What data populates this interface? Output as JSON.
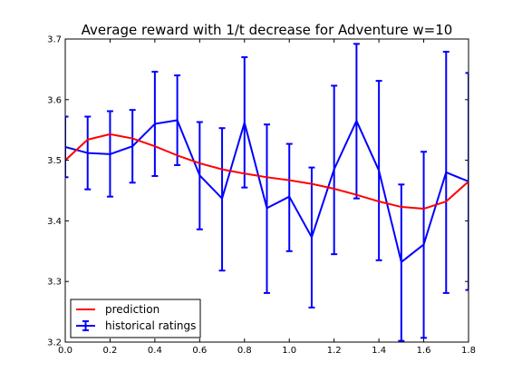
{
  "chart_data": {
    "type": "line",
    "title": "Average reward with 1/t decrease for Adventure w=10",
    "xlim": [
      0.0,
      1.8
    ],
    "ylim": [
      3.2,
      3.7
    ],
    "x_ticks": [
      "0.0",
      "0.2",
      "0.4",
      "0.6",
      "0.8",
      "1.0",
      "1.2",
      "1.4",
      "1.6",
      "1.8"
    ],
    "y_ticks": [
      "3.2",
      "3.3",
      "3.4",
      "3.5",
      "3.6",
      "3.7"
    ],
    "legend_position": "lower-left",
    "series": [
      {
        "name": "prediction",
        "color": "#ff0000",
        "x": [
          0.0,
          0.1,
          0.2,
          0.3,
          0.4,
          0.5,
          0.6,
          0.7,
          0.8,
          0.9,
          1.0,
          1.1,
          1.2,
          1.3,
          1.4,
          1.5,
          1.6,
          1.7,
          1.8
        ],
        "y": [
          3.5,
          3.534,
          3.543,
          3.536,
          3.523,
          3.508,
          3.495,
          3.485,
          3.478,
          3.472,
          3.467,
          3.461,
          3.453,
          3.443,
          3.432,
          3.423,
          3.42,
          3.432,
          3.465
        ]
      },
      {
        "name": "historical ratings",
        "color": "#0000ff",
        "x": [
          0.0,
          0.1,
          0.2,
          0.3,
          0.4,
          0.5,
          0.6,
          0.7,
          0.8,
          0.9,
          1.0,
          1.1,
          1.2,
          1.3,
          1.4,
          1.5,
          1.6,
          1.7,
          1.8
        ],
        "y": [
          3.522,
          3.512,
          3.51,
          3.523,
          3.56,
          3.566,
          3.475,
          3.437,
          3.562,
          3.421,
          3.44,
          3.373,
          3.485,
          3.565,
          3.483,
          3.332,
          3.361,
          3.48,
          3.465
        ],
        "err_low": [
          3.472,
          3.452,
          3.44,
          3.463,
          3.474,
          3.492,
          3.386,
          3.318,
          3.455,
          3.281,
          3.35,
          3.257,
          3.345,
          3.437,
          3.335,
          3.202,
          3.207,
          3.281,
          3.286
        ],
        "err_high": [
          3.572,
          3.572,
          3.581,
          3.583,
          3.646,
          3.64,
          3.563,
          3.553,
          3.67,
          3.559,
          3.527,
          3.488,
          3.623,
          3.692,
          3.631,
          3.46,
          3.514,
          3.679,
          3.644
        ]
      }
    ]
  }
}
